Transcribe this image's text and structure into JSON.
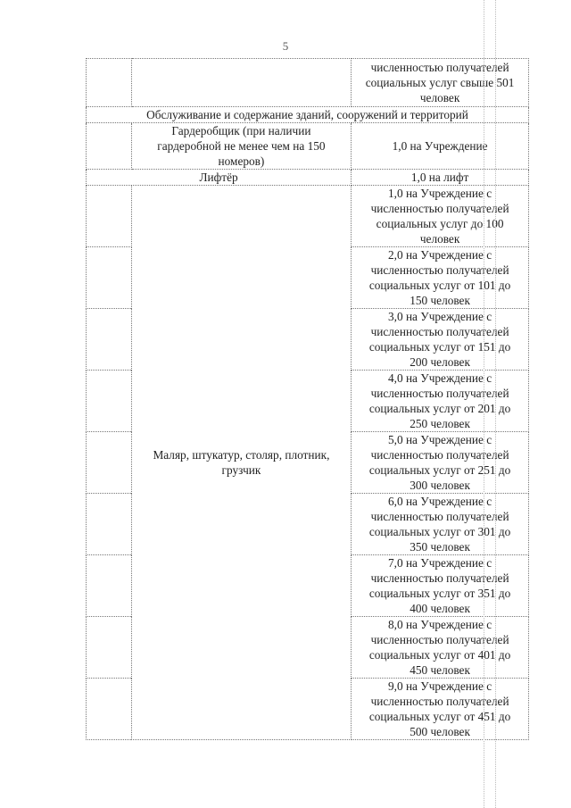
{
  "page_number": "5",
  "table": {
    "row_continued": {
      "norm": "численностью получателей социальных услуг свыше 501 человек"
    },
    "section_title": "Обслуживание и содержание зданий, сооружений и территорий",
    "rows": [
      {
        "position": "Гардеробщик (при наличии гардеробной не менее чем на 150 номеров)",
        "norm": "1,0 на Учреждение"
      },
      {
        "position": "Лифтёр",
        "norm": "1,0 на лифт"
      }
    ],
    "group": {
      "position": "Маляр, штукатур, столяр, плотник, грузчик",
      "norms": [
        "1,0 на Учреждение с численностью получателей социальных услуг до 100 человек",
        "2,0 на Учреждение с численностью получателей социальных услуг от 101 до 150 человек",
        "3,0 на Учреждение с численностью получателей социальных услуг от 151 до 200 человек",
        "4,0 на Учреждение с численностью получателей социальных услуг от 201 до 250 человек",
        "5,0 на Учреждение с численностью получателей социальных услуг от 251 до 300 человек",
        "6,0 на Учреждение с численностью получателей социальных услуг от 301 до 350 человек",
        "7,0 на Учреждение с численностью получателей социальных услуг от 351 до 400 человек",
        "8,0 на Учреждение с численностью получателей социальных услуг от 401 до 450 человек",
        "9,0 на Учреждение с численностью получателей социальных услуг от 451 до 500 человек"
      ]
    }
  }
}
